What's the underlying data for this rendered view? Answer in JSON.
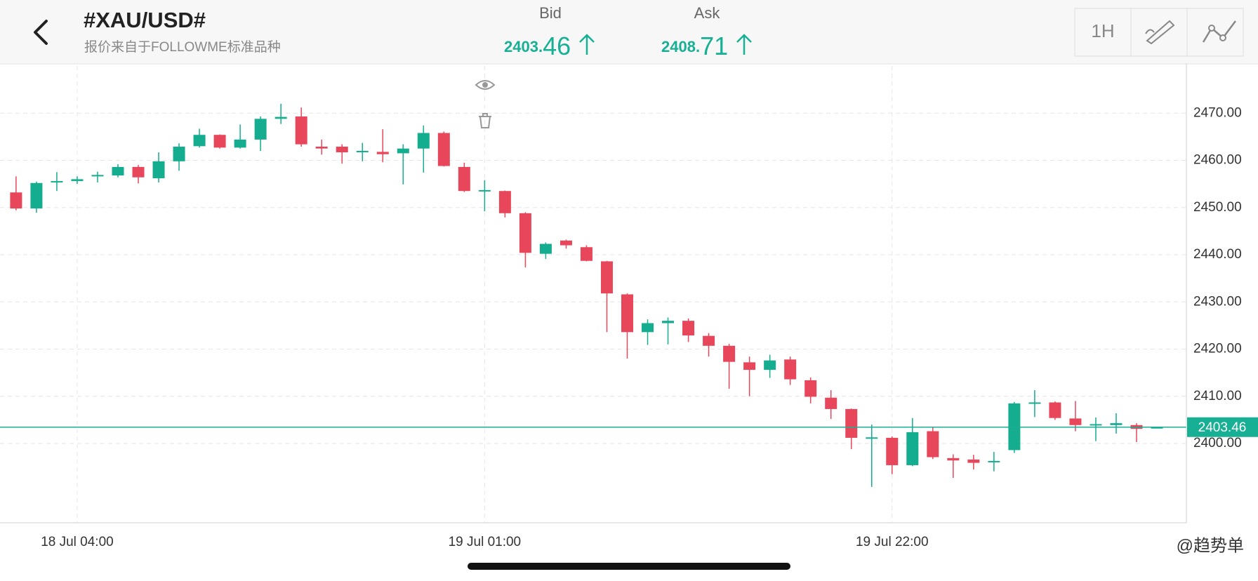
{
  "header": {
    "title": "#XAU/USD#",
    "subtitle": "报价来自于FOLLOWME标准品种",
    "bid": {
      "label": "Bid",
      "main": "2403.",
      "fraction": "46"
    },
    "ask": {
      "label": "Ask",
      "main": "2408.",
      "fraction": "71"
    },
    "interval": "1H"
  },
  "chart_data": {
    "type": "candlestick",
    "categories": [
      null,
      null,
      null,
      "18 Jul 04:00",
      null,
      null,
      null,
      null,
      null,
      null,
      null,
      null,
      null,
      null,
      null,
      null,
      null,
      null,
      null,
      null,
      null,
      null,
      null,
      "19 Jul 01:00",
      null,
      null,
      null,
      null,
      null,
      null,
      null,
      null,
      null,
      null,
      null,
      null,
      null,
      null,
      null,
      null,
      null,
      null,
      null,
      "19 Jul 22:00",
      null,
      null,
      null,
      null,
      null,
      null,
      null,
      null,
      null,
      null,
      null,
      null,
      null
    ],
    "open": [
      2453.2,
      2449.8,
      2455.3,
      2455.6,
      2456.6,
      2456.8,
      2458.6,
      2456.2,
      2459.8,
      2463.0,
      2465.4,
      2462.7,
      2464.4,
      2468.8,
      2469.3,
      2462.9,
      2462.9,
      2461.7,
      2461.8,
      2461.5,
      2462.5,
      2465.8,
      2458.6,
      2453.6,
      2453.5,
      2448.8,
      2440.2,
      2443.0,
      2441.6,
      2438.6,
      2431.6,
      2423.6,
      2425.5,
      2426.0,
      2422.8,
      2420.7,
      2417.2,
      2415.6,
      2417.8,
      2413.4,
      2409.7,
      2407.3,
      2401.1,
      2401.2,
      2395.4,
      2402.6,
      2396.9,
      2396.6,
      2396.1,
      2398.6,
      2408.5,
      2408.7,
      2405.3,
      2403.9,
      2403.9,
      2403.9,
      2403.3
    ],
    "high": [
      2456.6,
      2455.5,
      2457.5,
      2456.6,
      2457.6,
      2459.2,
      2459.0,
      2461.7,
      2463.6,
      2466.7,
      2465.5,
      2467.6,
      2469.3,
      2472.0,
      2471.2,
      2464.4,
      2463.4,
      2463.7,
      2466.6,
      2463.4,
      2467.4,
      2466.1,
      2459.5,
      2455.8,
      2453.6,
      2449.0,
      2442.6,
      2443.2,
      2442.0,
      2438.7,
      2431.8,
      2426.3,
      2426.7,
      2426.5,
      2423.4,
      2421.1,
      2418.4,
      2418.8,
      2418.4,
      2414.0,
      2411.3,
      2407.4,
      2404.0,
      2401.5,
      2405.4,
      2403.5,
      2397.7,
      2397.6,
      2398.2,
      2408.8,
      2411.3,
      2408.9,
      2409.0,
      2405.5,
      2406.4,
      2404.3,
      2403.6
    ],
    "low": [
      2449.4,
      2448.9,
      2453.5,
      2455.0,
      2455.3,
      2456.4,
      2455.1,
      2455.3,
      2457.8,
      2462.7,
      2462.5,
      2462.5,
      2462.0,
      2467.7,
      2462.9,
      2461.2,
      2459.3,
      2459.8,
      2459.6,
      2454.9,
      2457.4,
      2458.7,
      2453.3,
      2449.2,
      2447.9,
      2437.3,
      2439.1,
      2441.3,
      2438.6,
      2423.6,
      2418.0,
      2420.9,
      2421.0,
      2421.5,
      2418.4,
      2411.6,
      2410.0,
      2413.9,
      2412.4,
      2408.5,
      2405.2,
      2398.8,
      2390.8,
      2393.5,
      2395.2,
      2396.7,
      2392.7,
      2394.5,
      2394.1,
      2398.0,
      2405.6,
      2405.0,
      2402.6,
      2400.5,
      2402.1,
      2400.3,
      2403.2
    ],
    "close": [
      2449.8,
      2455.2,
      2455.6,
      2456.0,
      2456.9,
      2458.6,
      2456.4,
      2459.8,
      2462.9,
      2465.4,
      2462.7,
      2464.4,
      2468.8,
      2469.2,
      2463.4,
      2462.5,
      2461.7,
      2462.0,
      2461.3,
      2462.5,
      2465.8,
      2458.8,
      2453.5,
      2453.7,
      2448.8,
      2440.4,
      2442.3,
      2442.0,
      2438.7,
      2431.8,
      2423.6,
      2425.5,
      2426.0,
      2422.9,
      2420.7,
      2417.3,
      2415.6,
      2417.6,
      2413.6,
      2409.9,
      2407.3,
      2401.2,
      2401.3,
      2395.4,
      2402.4,
      2397.1,
      2396.4,
      2395.9,
      2396.3,
      2408.5,
      2408.7,
      2405.4,
      2403.9,
      2404.1,
      2404.3,
      2403.1,
      2403.46
    ],
    "up_color": "#14ad8f",
    "down_color": "#e8475b",
    "ylim": [
      2383.2,
      2480
    ],
    "yticks": [
      {
        "value": 2400,
        "label": "2400.00"
      },
      {
        "value": 2410,
        "label": "2410.00"
      },
      {
        "value": 2420,
        "label": "2420.00"
      },
      {
        "value": 2430,
        "label": "2430.00"
      },
      {
        "value": 2440,
        "label": "2440.00"
      },
      {
        "value": 2450,
        "label": "2450.00"
      },
      {
        "value": 2460,
        "label": "2460.00"
      },
      {
        "value": 2470,
        "label": "2470.00"
      }
    ],
    "current_price": 2403.46,
    "current_color": "#17b095",
    "grid": true,
    "watermark": "@趋势单"
  }
}
